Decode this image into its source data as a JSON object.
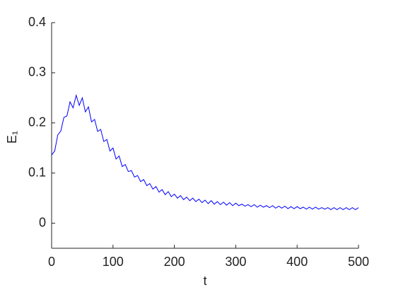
{
  "chart_data": {
    "type": "line",
    "x_label": "t",
    "y_label": "E₁",
    "x": [
      0,
      5,
      10,
      15,
      20,
      25,
      30,
      35,
      40,
      45,
      50,
      55,
      60,
      65,
      70,
      75,
      80,
      85,
      90,
      95,
      100,
      105,
      110,
      115,
      120,
      125,
      130,
      135,
      140,
      145,
      150,
      155,
      160,
      165,
      170,
      175,
      180,
      185,
      190,
      195,
      200,
      205,
      210,
      215,
      220,
      225,
      230,
      235,
      240,
      245,
      250,
      255,
      260,
      265,
      270,
      275,
      280,
      285,
      290,
      295,
      300,
      305,
      310,
      315,
      320,
      325,
      330,
      335,
      340,
      345,
      350,
      355,
      360,
      365,
      370,
      375,
      380,
      385,
      390,
      395,
      400,
      405,
      410,
      415,
      420,
      425,
      430,
      435,
      440,
      445,
      450,
      455,
      460,
      465,
      470,
      475,
      480,
      485,
      490,
      495,
      500
    ],
    "series": [
      {
        "color": "#0000ff",
        "values": [
          0.136,
          0.144,
          0.176,
          0.184,
          0.211,
          0.214,
          0.242,
          0.23,
          0.255,
          0.235,
          0.25,
          0.222,
          0.232,
          0.202,
          0.207,
          0.183,
          0.187,
          0.163,
          0.167,
          0.144,
          0.15,
          0.128,
          0.134,
          0.113,
          0.117,
          0.103,
          0.105,
          0.092,
          0.095,
          0.083,
          0.087,
          0.075,
          0.079,
          0.068,
          0.073,
          0.062,
          0.067,
          0.057,
          0.063,
          0.053,
          0.058,
          0.05,
          0.055,
          0.047,
          0.052,
          0.045,
          0.05,
          0.043,
          0.048,
          0.041,
          0.046,
          0.039,
          0.045,
          0.038,
          0.043,
          0.037,
          0.042,
          0.036,
          0.041,
          0.035,
          0.04,
          0.035,
          0.038,
          0.034,
          0.037,
          0.033,
          0.037,
          0.032,
          0.036,
          0.032,
          0.035,
          0.031,
          0.035,
          0.03,
          0.034,
          0.03,
          0.034,
          0.029,
          0.033,
          0.029,
          0.033,
          0.029,
          0.032,
          0.028,
          0.032,
          0.028,
          0.032,
          0.028,
          0.031,
          0.028,
          0.031,
          0.027,
          0.031,
          0.027,
          0.031,
          0.027,
          0.031,
          0.027,
          0.031,
          0.027,
          0.031
        ]
      }
    ],
    "xlim": [
      0,
      500
    ],
    "xticks": [
      0,
      100,
      200,
      300,
      400,
      500
    ],
    "ylim": [
      -0.05,
      0.4
    ],
    "yticks": [
      0,
      0.1,
      0.2,
      0.3,
      0.4
    ]
  }
}
